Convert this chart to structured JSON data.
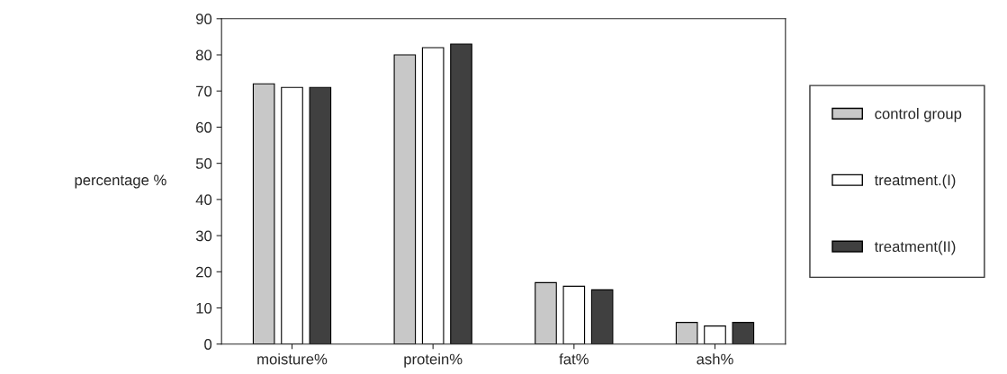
{
  "chart_data": {
    "type": "bar",
    "ylabel": "percentage %",
    "categories": [
      "moisture%",
      "protein%",
      "fat%",
      "ash%"
    ],
    "series": [
      {
        "name": "control group",
        "color": "#c8c8c8",
        "values": [
          72,
          80,
          17,
          6
        ]
      },
      {
        "name": "treatment.(I)",
        "color": "#ffffff",
        "values": [
          71,
          82,
          16,
          5
        ]
      },
      {
        "name": "treatment(II)",
        "color": "#404040",
        "values": [
          71,
          83,
          15,
          6
        ]
      }
    ],
    "ylim": [
      0,
      90
    ],
    "yticks": [
      0,
      10,
      20,
      30,
      40,
      50,
      60,
      70,
      80,
      90
    ],
    "grid": false,
    "legend": "right"
  }
}
